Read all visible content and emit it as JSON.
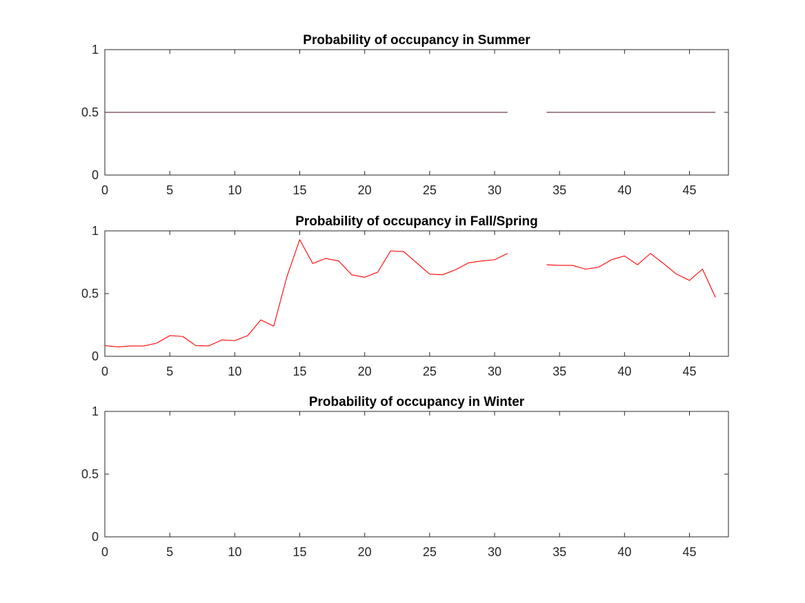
{
  "chart_data": [
    {
      "type": "line",
      "title": "Probability of occupancy in Summer",
      "xlabel": "",
      "ylabel": "",
      "xlim": [
        0,
        48
      ],
      "ylim": [
        0,
        1
      ],
      "xticks": [
        "0",
        "5",
        "10",
        "15",
        "20",
        "25",
        "30",
        "35",
        "40",
        "45"
      ],
      "yticks": [
        "0",
        "0.5",
        "1"
      ],
      "grid": false,
      "series": [
        {
          "color": "#4a0e1a",
          "x": [
            0,
            1,
            2,
            3,
            4,
            5,
            6,
            7,
            8,
            9,
            10,
            11,
            12,
            13,
            14,
            15,
            16,
            17,
            18,
            19,
            20,
            21,
            22,
            23,
            24,
            25,
            26,
            27,
            28,
            29,
            30,
            31,
            32,
            33,
            34,
            35,
            36,
            37,
            38,
            39,
            40,
            41,
            42,
            43,
            44,
            45,
            46,
            47
          ],
          "y": [
            0.5,
            0.5,
            0.5,
            0.5,
            0.5,
            0.5,
            0.5,
            0.5,
            0.5,
            0.5,
            0.5,
            0.5,
            0.5,
            0.5,
            0.5,
            0.5,
            0.5,
            0.5,
            0.5,
            0.5,
            0.5,
            0.5,
            0.5,
            0.5,
            0.5,
            0.5,
            0.5,
            0.5,
            0.5,
            0.5,
            0.5,
            0.5,
            null,
            null,
            0.5,
            0.5,
            0.5,
            0.5,
            0.5,
            0.5,
            0.5,
            0.5,
            0.5,
            0.5,
            0.5,
            0.5,
            0.5,
            0.5
          ]
        }
      ]
    },
    {
      "type": "line",
      "title": "Probability of occupancy in Fall/Spring",
      "xlabel": "",
      "ylabel": "",
      "xlim": [
        0,
        48
      ],
      "ylim": [
        0,
        1
      ],
      "xticks": [
        "0",
        "5",
        "10",
        "15",
        "20",
        "25",
        "30",
        "35",
        "40",
        "45"
      ],
      "yticks": [
        "0",
        "0.5",
        "1"
      ],
      "grid": false,
      "series": [
        {
          "color": "#ff0000",
          "x": [
            0,
            1,
            2,
            3,
            4,
            5,
            6,
            7,
            8,
            9,
            10,
            11,
            12,
            13,
            14,
            15,
            16,
            17,
            18,
            19,
            20,
            21,
            22,
            23,
            24,
            25,
            26,
            27,
            28,
            29,
            30,
            31,
            32,
            33,
            34,
            35,
            36,
            37,
            38,
            39,
            40,
            41,
            42,
            43,
            44,
            45,
            46,
            47
          ],
          "y": [
            0.085,
            0.075,
            0.082,
            0.082,
            0.105,
            0.165,
            0.158,
            0.085,
            0.083,
            0.13,
            0.125,
            0.165,
            0.29,
            0.24,
            0.63,
            0.93,
            0.74,
            0.78,
            0.76,
            0.65,
            0.63,
            0.67,
            0.84,
            0.835,
            0.745,
            0.655,
            0.65,
            0.69,
            0.745,
            0.76,
            0.77,
            0.82,
            null,
            null,
            0.73,
            0.725,
            0.725,
            0.695,
            0.71,
            0.77,
            0.8,
            0.73,
            0.82,
            0.74,
            0.655,
            0.605,
            0.695,
            0.47
          ]
        }
      ]
    },
    {
      "type": "line",
      "title": "Probability of occupancy in Winter",
      "xlabel": "",
      "ylabel": "",
      "xlim": [
        0,
        48
      ],
      "ylim": [
        0,
        1
      ],
      "xticks": [
        "0",
        "5",
        "10",
        "15",
        "20",
        "25",
        "30",
        "35",
        "40",
        "45"
      ],
      "yticks": [
        "0",
        "0.5",
        "1"
      ],
      "grid": false,
      "series": []
    }
  ]
}
